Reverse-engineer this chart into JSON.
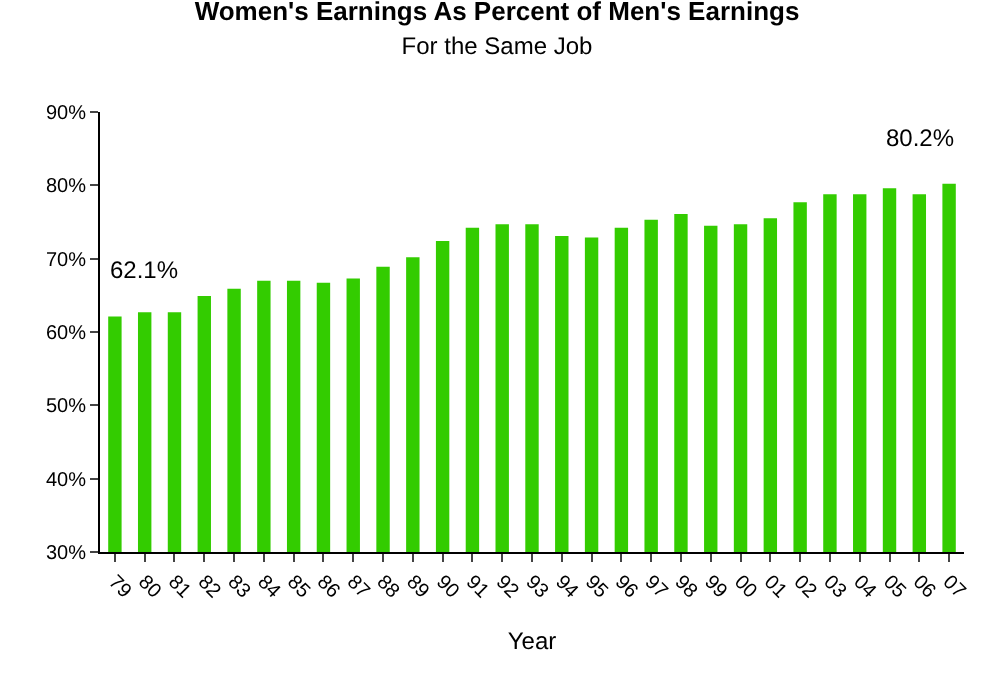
{
  "chart_data": {
    "type": "bar",
    "title": "Women's Earnings As Percent of Men's Earnings",
    "subtitle": "For the Same Job",
    "xlabel": "Year",
    "categories": [
      "79",
      "80",
      "81",
      "82",
      "83",
      "84",
      "85",
      "86",
      "87",
      "88",
      "89",
      "90",
      "91",
      "92",
      "93",
      "94",
      "95",
      "96",
      "97",
      "98",
      "99",
      "00",
      "01",
      "02",
      "03",
      "04",
      "05",
      "06",
      "07"
    ],
    "values": [
      62.1,
      62.7,
      62.7,
      64.9,
      65.9,
      67.0,
      67.0,
      66.7,
      67.3,
      68.9,
      70.2,
      72.4,
      74.2,
      74.7,
      74.7,
      73.1,
      72.9,
      74.2,
      75.3,
      76.1,
      74.5,
      74.7,
      75.5,
      77.7,
      78.8,
      78.8,
      79.6,
      78.8,
      80.2
    ],
    "color": "#33cc00",
    "ylim": [
      30,
      90
    ],
    "yticks": [
      {
        "value": 30,
        "label": "30%"
      },
      {
        "value": 40,
        "label": "40%"
      },
      {
        "value": 50,
        "label": "50%"
      },
      {
        "value": 60,
        "label": "60%"
      },
      {
        "value": 70,
        "label": "70%"
      },
      {
        "value": 80,
        "label": "80%"
      },
      {
        "value": 90,
        "label": "90%"
      }
    ],
    "annotations": [
      {
        "text": "62.1%",
        "x": "79",
        "y": 62.1
      },
      {
        "text": "80.2%",
        "x": "07",
        "y": 80.2
      }
    ]
  }
}
